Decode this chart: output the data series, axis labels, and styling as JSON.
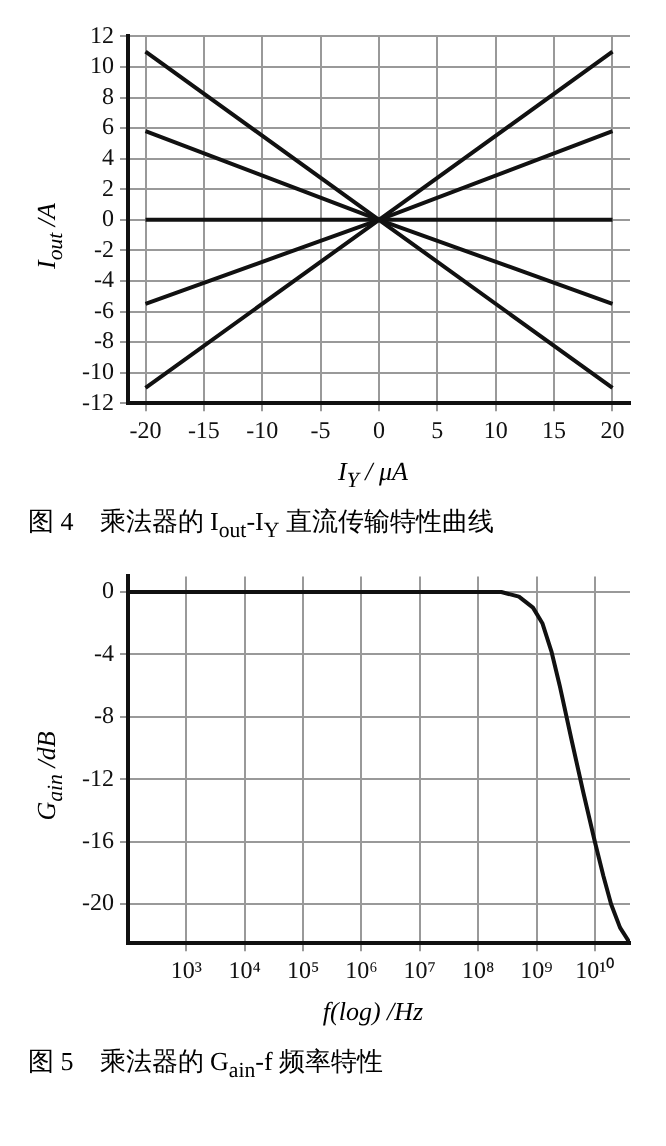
{
  "chart_data": [
    {
      "type": "line",
      "title": "图 4　乘法器的 I$_{out}$-I$_{Y}$ 直流传输特性曲线",
      "xlabel": "I$_{Y}$ / μA",
      "ylabel": "I$_{out}$ /A",
      "x": [
        -20,
        0,
        20
      ],
      "series": [
        {
          "color": "#111111",
          "values": [
            11,
            0,
            -11
          ]
        },
        {
          "color": "#111111",
          "values": [
            5.8,
            0,
            -5.5
          ]
        },
        {
          "color": "#111111",
          "values": [
            0,
            0,
            0
          ]
        },
        {
          "color": "#111111",
          "values": [
            -5.5,
            0,
            5.8
          ]
        },
        {
          "color": "#111111",
          "values": [
            -11,
            0,
            11
          ]
        }
      ],
      "xlim": [
        -21.5,
        21.5
      ],
      "xticks": [
        -20,
        -15,
        -10,
        -5,
        0,
        5,
        10,
        15,
        20
      ],
      "ylim": [
        -12,
        12
      ],
      "yticks": [
        -12,
        -10,
        -8,
        -6,
        -4,
        -2,
        0,
        2,
        4,
        6,
        8,
        10,
        12
      ],
      "grid": true,
      "legend": false,
      "marker": "none",
      "line_style": "solid"
    },
    {
      "type": "line",
      "title": "图 5　乘法器的 G$_{ain}$-f 频率特性",
      "xlabel": "f(log) /Hz",
      "ylabel": "G$_{ain}$ /dB",
      "log": "x",
      "series": [
        {
          "color": "#111111",
          "x": [
            100,
            1000,
            10000,
            100000,
            1000000,
            10000000,
            100000000,
            250000000,
            500000000,
            870000000,
            1260000000,
            1800000000,
            2500000000,
            4000000000,
            6300000000,
            10000000000,
            14000000000,
            19000000000,
            27000000000,
            40000000000
          ],
          "values": [
            0,
            0,
            0,
            0,
            0,
            0,
            0,
            0,
            -0.3,
            -1,
            -2,
            -3.8,
            -6,
            -9.5,
            -12.8,
            -16,
            -18.2,
            -20,
            -21.5,
            -22.5
          ]
        }
      ],
      "xlim": [
        100,
        40000000000
      ],
      "xticks": [
        {
          "value": 1000,
          "label": "10³"
        },
        {
          "value": 10000,
          "label": "10⁴"
        },
        {
          "value": 100000,
          "label": "10⁵"
        },
        {
          "value": 1000000,
          "label": "10⁶"
        },
        {
          "value": 10000000,
          "label": "10⁷"
        },
        {
          "value": 100000000,
          "label": "10⁸"
        },
        {
          "value": 1000000000,
          "label": "10⁹"
        },
        {
          "value": 10000000000,
          "label": "10¹⁰"
        }
      ],
      "ylim": [
        -22.5,
        1
      ],
      "yticks": [
        -20,
        -16,
        -12,
        -8,
        -4,
        0
      ],
      "grid": true,
      "legend": false,
      "marker": "none",
      "line_style": "solid"
    }
  ]
}
